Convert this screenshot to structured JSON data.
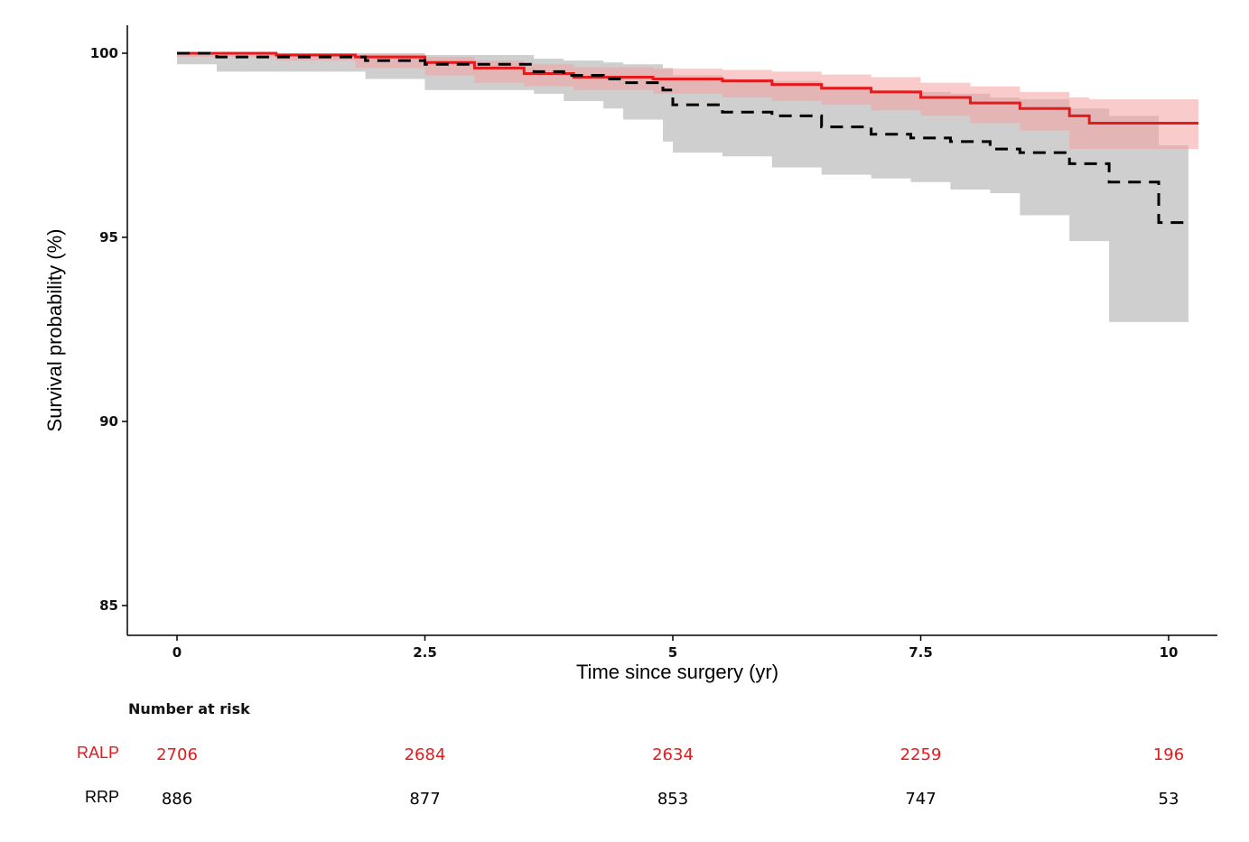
{
  "chart_data": {
    "type": "line",
    "title": "",
    "xlabel": "Time since surgery (yr)",
    "ylabel": "Survival probability (%)",
    "xlim": [
      -0.5,
      10.5
    ],
    "ylim": [
      84.3,
      100.8
    ],
    "x_ticks": [
      0,
      2.5,
      5,
      7.5,
      10
    ],
    "x_tick_labels": [
      "0",
      "2.5",
      "5",
      "7.5",
      "10"
    ],
    "y_ticks": [
      85,
      90,
      95,
      100
    ],
    "y_tick_labels": [
      "85",
      "90",
      "95",
      "100"
    ],
    "grid": false,
    "legend": "none",
    "series": [
      {
        "name": "RALP",
        "color": "#e41a1c",
        "band_color": "#f4a0a0",
        "line_style": "solid",
        "x": [
          0,
          1.0,
          1.8,
          2.5,
          3.0,
          3.5,
          4.0,
          4.8,
          5.5,
          6.0,
          6.5,
          7.0,
          7.5,
          8.0,
          8.5,
          9.0,
          9.2,
          10.3
        ],
        "y": [
          100,
          99.95,
          99.9,
          99.75,
          99.6,
          99.45,
          99.35,
          99.3,
          99.25,
          99.15,
          99.05,
          98.95,
          98.8,
          98.65,
          98.5,
          98.3,
          98.1,
          98.1
        ],
        "lower": [
          100,
          99.9,
          99.8,
          99.6,
          99.4,
          99.2,
          99.1,
          99.0,
          98.9,
          98.8,
          98.7,
          98.6,
          98.45,
          98.3,
          98.1,
          97.9,
          97.4,
          97.4
        ],
        "upper": [
          100,
          100,
          99.98,
          99.9,
          99.8,
          99.7,
          99.62,
          99.58,
          99.55,
          99.5,
          99.42,
          99.35,
          99.2,
          99.1,
          98.95,
          98.8,
          98.75,
          98.75
        ]
      },
      {
        "name": "RRP",
        "color": "#000000",
        "band_color": "#cfcfcf",
        "line_style": "dashed",
        "x": [
          0,
          0.4,
          1.9,
          2.5,
          3.6,
          3.9,
          4.3,
          4.5,
          4.9,
          5.0,
          5.5,
          6.0,
          6.5,
          7.0,
          7.4,
          7.8,
          8.2,
          8.5,
          9.0,
          9.4,
          9.9,
          10.2
        ],
        "y": [
          100,
          99.9,
          99.8,
          99.7,
          99.5,
          99.4,
          99.3,
          99.2,
          99.0,
          98.6,
          98.4,
          98.3,
          98.0,
          97.8,
          97.7,
          97.6,
          97.4,
          97.3,
          97.0,
          96.5,
          95.4,
          95.4
        ],
        "lower": [
          100,
          99.7,
          99.5,
          99.3,
          99.0,
          98.9,
          98.7,
          98.5,
          98.2,
          97.6,
          97.3,
          97.2,
          96.9,
          96.7,
          96.6,
          96.5,
          96.3,
          96.2,
          95.6,
          94.9,
          92.7,
          92.7
        ],
        "upper": [
          100,
          100,
          100,
          99.95,
          99.85,
          99.8,
          99.75,
          99.7,
          99.6,
          99.4,
          99.3,
          99.25,
          99.1,
          99.0,
          98.95,
          98.9,
          98.8,
          98.75,
          98.5,
          98.3,
          97.5,
          97.5
        ]
      }
    ],
    "risk_table": {
      "title": "Number at risk",
      "times": [
        0,
        2.5,
        5,
        7.5,
        10
      ],
      "rows": [
        {
          "label": "RALP",
          "color": "#e41a1c",
          "values": [
            "2706",
            "2684",
            "2634",
            "2259",
            "196"
          ]
        },
        {
          "label": "RRP",
          "color": "#000000",
          "values": [
            "886",
            "877",
            "853",
            "747",
            "53"
          ]
        }
      ]
    }
  }
}
